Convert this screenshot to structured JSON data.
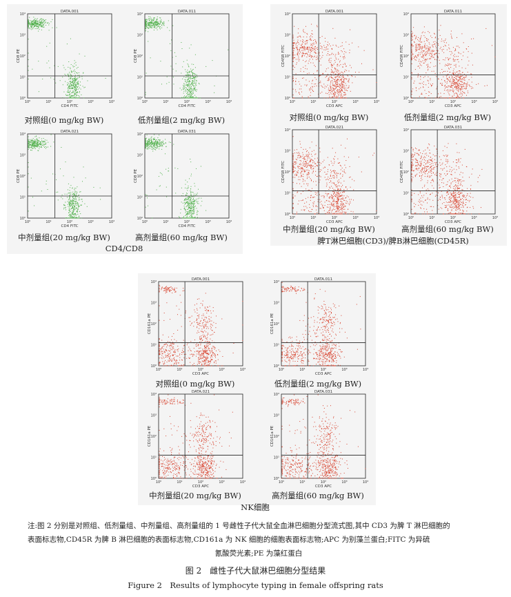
{
  "panels": [
    {
      "name": "CD4/CD8",
      "group_label": "CD4/CD8",
      "color": "#4fb04a",
      "type": "green",
      "plots": [
        {
          "title": "DATA.001",
          "xlabel": "CD4 FITC",
          "ylabel": "CD8 PE",
          "caption": "对照组(0 mg/kg BW)"
        },
        {
          "title": "DATA.011",
          "xlabel": "CD4 FITC",
          "ylabel": "CD8 PE",
          "caption": "低剂量组(2 mg/kg BW)"
        },
        {
          "title": "DATA.021",
          "xlabel": "CD4 FITC",
          "ylabel": "CD8 PE",
          "caption": "中剂量组(20 mg/kg BW)"
        },
        {
          "title": "DATA.031",
          "xlabel": "CD4 FITC",
          "ylabel": "CD8 PE",
          "caption": "高剂量组(60 mg/kg BW)"
        }
      ]
    },
    {
      "name": "T/B",
      "group_label": "脾T淋巴细胞(CD3)/脾B淋巴细胞(CD45R)",
      "color": "#d8412c",
      "type": "tb",
      "plots": [
        {
          "title": "DATA.001",
          "xlabel": "CD3 APC",
          "ylabel": "CD45R FITC",
          "caption": "对照组(0 mg/kg BW)"
        },
        {
          "title": "DATA.011",
          "xlabel": "CD3 APC",
          "ylabel": "CD45R FITC",
          "caption": "低剂量组(2 mg/kg BW)"
        },
        {
          "title": "DATA.021",
          "xlabel": "CD3 APC",
          "ylabel": "CD45R FITC",
          "caption": "中剂量组(20 mg/kg BW)"
        },
        {
          "title": "DATA.031",
          "xlabel": "CD3 APC",
          "ylabel": "CD45R FITC",
          "caption": "高剂量组(60 mg/kg BW)"
        }
      ]
    },
    {
      "name": "NK",
      "group_label": "NK细胞",
      "color": "#d8412c",
      "type": "nk",
      "plots": [
        {
          "title": "DATA.001",
          "xlabel": "CD3 APC",
          "ylabel": "CD161a PE",
          "caption": "对照组(0 mg/kg BW)"
        },
        {
          "title": "DATA.011",
          "xlabel": "CD3 APC",
          "ylabel": "CD161a PE",
          "caption": "低剂量组(2 mg/kg BW)"
        },
        {
          "title": "DATA.021",
          "xlabel": "CD3 APC",
          "ylabel": "CD161a PE",
          "caption": "中剂量组(20 mg/kg BW)"
        },
        {
          "title": "DATA.031",
          "xlabel": "CD3 APC",
          "ylabel": "CD161a PE",
          "caption": "高剂量组(60 mg/kg BW)"
        }
      ]
    }
  ],
  "tick_labels": [
    "10⁰",
    "10¹",
    "10²",
    "10³",
    "10⁴"
  ],
  "note": {
    "line1": "注:图 2 分别是对照组、低剂量组、中剂量组、高剂量组的 1 号雌性子代大鼠全血淋巴细胞分型流式图,其中 CD3 为脾 T 淋巴细胞的",
    "line2": "表面标志物,CD45R 为脾 B 淋巴细胞的表面标志物,CD161a 为 NK 细胞的细胞表面标志物;APC 为别藻兰蛋白;FITC 为异硫",
    "line3": "氰酸荧光素;PE 为藻红蛋白"
  },
  "figure": {
    "title": "图 2　雌性子代大鼠淋巴细胞分型结果",
    "title_en": "Figure 2　Results of lymphocyte typing in female offspring rats"
  }
}
